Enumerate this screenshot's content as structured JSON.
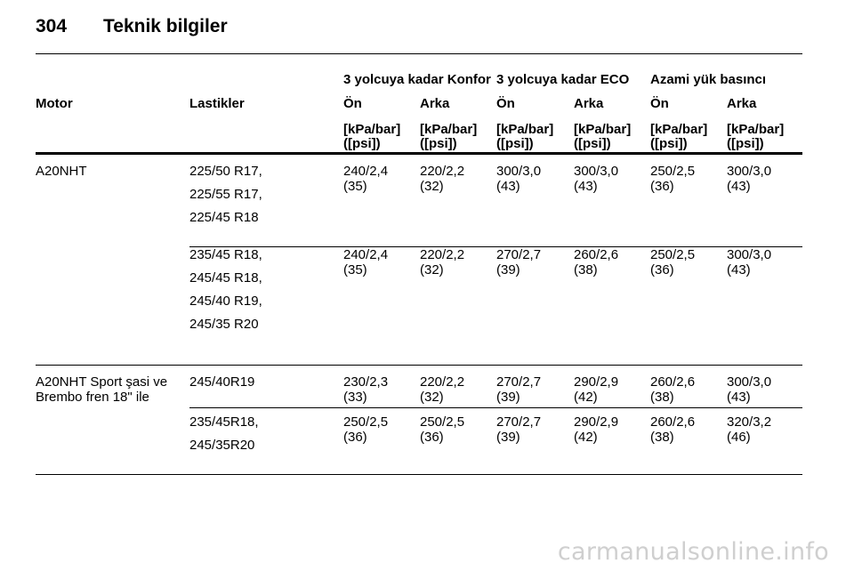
{
  "page": {
    "number": "304",
    "title": "Teknik bilgiler"
  },
  "table": {
    "groups": [
      "3 yolcuya kadar Konfor",
      "3 yolcuya kadar ECO",
      "Azami yük basıncı"
    ],
    "col_motor": "Motor",
    "col_tires": "Lastikler",
    "axle_labels": [
      "Ön",
      "Arka",
      "Ön",
      "Arka",
      "Ön",
      "Arka"
    ],
    "unit_line1": "[kPa/bar]",
    "unit_line2": "([psi])",
    "sections": [
      {
        "motor": [
          "A20NHT"
        ],
        "rows": [
          {
            "tires": [
              "225/50 R17,",
              "225/55 R17,",
              "225/45 R18"
            ],
            "values": [
              [
                "240/2,4",
                "(35)"
              ],
              [
                "220/2,2",
                "(32)"
              ],
              [
                "300/3,0",
                "(43)"
              ],
              [
                "300/3,0",
                "(43)"
              ],
              [
                "250/2,5",
                "(36)"
              ],
              [
                "300/3,0",
                "(43)"
              ]
            ]
          },
          {
            "tires": [
              "235/45 R18,",
              "245/45 R18,",
              "245/40 R19,",
              "245/35 R20"
            ],
            "values": [
              [
                "240/2,4",
                "(35)"
              ],
              [
                "220/2,2",
                "(32)"
              ],
              [
                "270/2,7",
                "(39)"
              ],
              [
                "260/2,6",
                "(38)"
              ],
              [
                "250/2,5",
                "(36)"
              ],
              [
                "300/3,0",
                "(43)"
              ]
            ]
          }
        ]
      },
      {
        "motor": [
          "A20NHT Sport şasi ve",
          "Brembo fren 18\" ile"
        ],
        "rows": [
          {
            "tires": [
              "245/40R19"
            ],
            "values": [
              [
                "230/2,3",
                "(33)"
              ],
              [
                "220/2,2",
                "(32)"
              ],
              [
                "270/2,7",
                "(39)"
              ],
              [
                "290/2,9",
                "(42)"
              ],
              [
                "260/2,6",
                "(38)"
              ],
              [
                "300/3,0",
                "(43)"
              ]
            ]
          },
          {
            "tires": [
              "235/45R18,",
              "245/35R20"
            ],
            "values": [
              [
                "250/2,5",
                "(36)"
              ],
              [
                "250/2,5",
                "(36)"
              ],
              [
                "270/2,7",
                "(39)"
              ],
              [
                "290/2,9",
                "(42)"
              ],
              [
                "260/2,6",
                "(38)"
              ],
              [
                "320/3,2",
                "(46)"
              ]
            ]
          }
        ]
      }
    ]
  },
  "watermark": "carmanualsonline.info"
}
